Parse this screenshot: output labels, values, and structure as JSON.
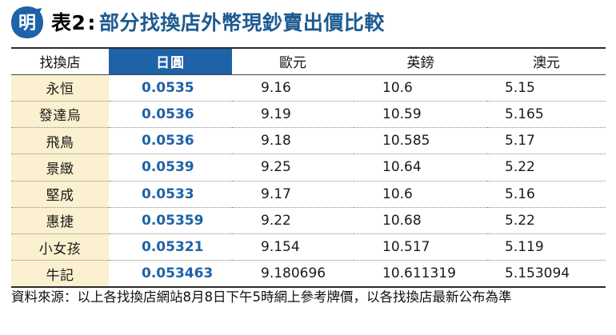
{
  "logo": {
    "icon": "ming-logo-icon",
    "glyph": "明",
    "color": "#1e62a8"
  },
  "title": {
    "label": "表2",
    "text": "部分找換店外幣現鈔賣出價比較"
  },
  "table": {
    "headers": [
      "找換店",
      "日圓",
      "歐元",
      "英鎊",
      "澳元"
    ],
    "rows": [
      [
        "永恒",
        "0.0535",
        "9.16",
        "10.6",
        "5.15"
      ],
      [
        "發達烏",
        "0.0536",
        "9.19",
        "10.59",
        "5.165"
      ],
      [
        "飛鳥",
        "0.0536",
        "9.18",
        "10.585",
        "5.17"
      ],
      [
        "景緻",
        "0.0539",
        "9.25",
        "10.64",
        "5.22"
      ],
      [
        "堅成",
        "0.0533",
        "9.17",
        "10.6",
        "5.16"
      ],
      [
        "惠捷",
        "0.05359",
        "9.22",
        "10.68",
        "5.22"
      ],
      [
        "小女孩",
        "0.05321",
        "9.154",
        "10.517",
        "5.119"
      ],
      [
        "牛記",
        "0.053463",
        "9.180696",
        "10.611319",
        "5.153094"
      ]
    ],
    "colors": {
      "highlight": "#1e62a8",
      "shop_column_bg": "#fbf0cf"
    }
  },
  "footnote": "資料來源：以上各找換店網站8月8日下午5時網上參考牌價，以各找換店最新公布為準"
}
